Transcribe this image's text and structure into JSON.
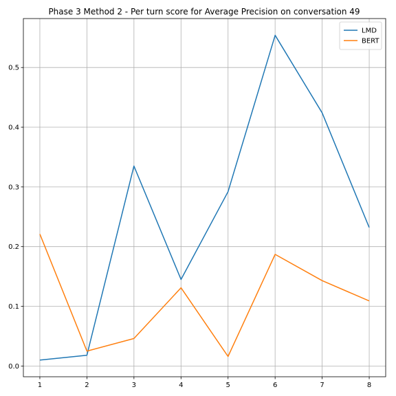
{
  "chart_data": {
    "type": "line",
    "title": "Phase 3 Method 2 - Per turn score for Average Precision on conversation 49",
    "xlabel": "",
    "ylabel": "",
    "x": [
      1,
      2,
      3,
      4,
      5,
      6,
      7,
      8
    ],
    "xlim": [
      0.65,
      8.35
    ],
    "ylim": [
      -0.018,
      0.582
    ],
    "x_ticks": [
      "1",
      "2",
      "3",
      "4",
      "5",
      "6",
      "7",
      "8"
    ],
    "y_ticks": [
      "0.0",
      "0.1",
      "0.2",
      "0.3",
      "0.4",
      "0.5"
    ],
    "grid": true,
    "legend_position": "top-right",
    "series": [
      {
        "name": "LMD",
        "color": "#1f77b4",
        "values": [
          0.01,
          0.018,
          0.335,
          0.145,
          0.292,
          0.554,
          0.424,
          0.232
        ]
      },
      {
        "name": "BERT",
        "color": "#ff7f0e",
        "values": [
          0.221,
          0.025,
          0.046,
          0.131,
          0.016,
          0.187,
          0.143,
          0.109
        ]
      }
    ]
  }
}
